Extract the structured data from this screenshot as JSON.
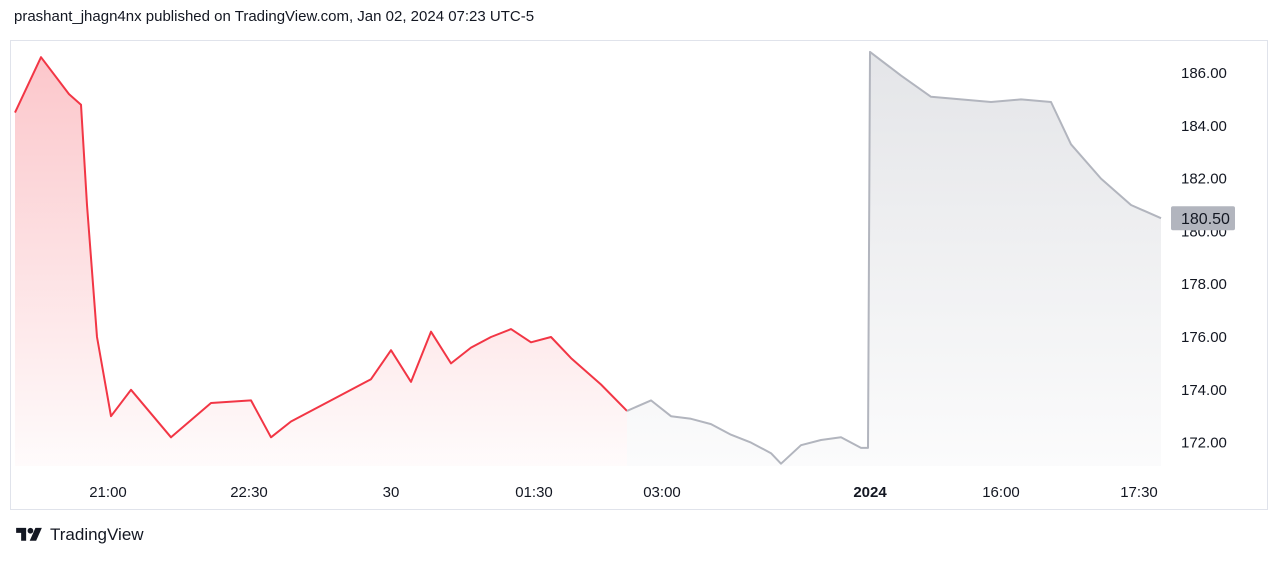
{
  "header": {
    "published_text": "prashant_jhagn4nx published on TradingView.com, Jan 02, 2024 07:23 UTC-5"
  },
  "footer": {
    "brand": "TradingView",
    "logo_icon": "tradingview-logo-icon"
  },
  "colors": {
    "session_line": "#f23645",
    "extended_line": "#b2b5be",
    "price_label_bg": "#b2b5be",
    "border": "#e0e3eb"
  },
  "chart_data": {
    "type": "area",
    "title": "",
    "xlabel": "",
    "ylabel": "",
    "x_ticks": [
      {
        "label": "21:00",
        "bold": false
      },
      {
        "label": "22:30",
        "bold": false
      },
      {
        "label": "30",
        "bold": false
      },
      {
        "label": "01:30",
        "bold": false
      },
      {
        "label": "03:00",
        "bold": false
      },
      {
        "label": "2024",
        "bold": true
      },
      {
        "label": "16:00",
        "bold": false
      },
      {
        "label": "17:30",
        "bold": false
      }
    ],
    "y_ticks": [
      "186.00",
      "184.00",
      "182.00",
      "180.00",
      "178.00",
      "176.00",
      "174.00",
      "172.00"
    ],
    "ylim": [
      171.0,
      187.0
    ],
    "last_price": "180.50",
    "grid": false,
    "series": [
      {
        "segment": "regular_session",
        "x": [
          "20:00",
          "20:15",
          "20:30",
          "20:45",
          "21:00",
          "21:15",
          "21:30",
          "21:45",
          "22:00",
          "22:15",
          "22:30",
          "22:45",
          "23:00",
          "23:15",
          "23:30",
          "23:45",
          "00:00",
          "00:15",
          "00:30",
          "00:45",
          "01:00",
          "01:15",
          "01:30",
          "01:45",
          "02:00",
          "02:15",
          "02:30"
        ],
        "values": [
          184.5,
          186.6,
          185.2,
          184.8,
          181.0,
          176.0,
          173.0,
          174.0,
          172.2,
          173.5,
          173.6,
          172.2,
          172.8,
          173.6,
          174.4,
          175.5,
          174.3,
          176.2,
          175.0,
          175.6,
          176.0,
          176.3,
          175.8,
          176.0,
          175.2,
          174.2,
          173.2
        ]
      },
      {
        "segment": "extended_hours",
        "x": [
          "02:30",
          "02:45",
          "03:00",
          "03:15",
          "03:30",
          "03:45",
          "04:00",
          "04:15",
          "04:30",
          "04:45",
          "05:00",
          "05:15",
          "05:30",
          "2024 pre",
          "2024 open",
          "14:30",
          "15:00",
          "15:30",
          "16:00",
          "16:30",
          "17:00",
          "17:15",
          "17:30",
          "17:45",
          "18:00"
        ],
        "values": [
          173.2,
          173.6,
          173.0,
          172.9,
          172.7,
          172.3,
          172.0,
          171.6,
          171.2,
          171.9,
          172.1,
          172.2,
          171.8,
          171.8,
          186.8,
          185.9,
          185.1,
          185.0,
          184.9,
          185.0,
          184.9,
          183.3,
          182.0,
          181.0,
          180.5
        ]
      }
    ]
  }
}
